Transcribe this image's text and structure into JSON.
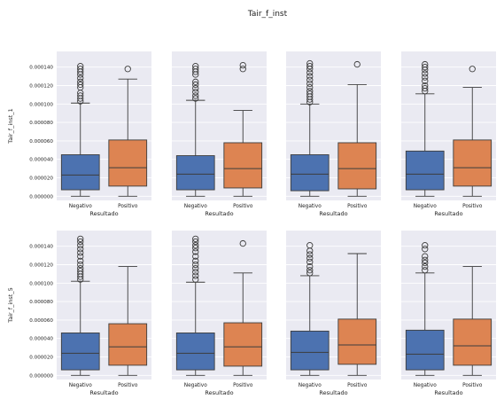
{
  "figure": {
    "title": "Tair_f_inst"
  },
  "colors": {
    "background": "#eaeaf2",
    "grid": "#ffffff",
    "negativo": "#4c72b0",
    "positivo": "#dd8452",
    "line": "#3d3d3d"
  },
  "chart_data": [
    {
      "type": "box",
      "panel": "row1-col1",
      "xlabel": "Resultado",
      "ylabel": "Tair_f_inst_1",
      "categories": [
        "Negativo",
        "Positivo"
      ],
      "yticks": [
        "0.000000",
        "0.000020",
        "0.000040",
        "0.000060",
        "0.000080",
        "0.000100",
        "0.000120",
        "0.000140"
      ],
      "ylim": [
        -4.5e-06,
        0.000157
      ],
      "boxes": [
        {
          "name": "Negativo",
          "whislo": 0.0,
          "q1": 7e-06,
          "med": 2.3e-05,
          "q3": 4.5e-05,
          "whishi": 0.000101,
          "fliers": [
            0.000103,
            0.000106,
            0.000109,
            0.000112,
            0.000118,
            0.000121,
            0.000124,
            0.000128,
            0.000132,
            0.000135,
            0.000138,
            0.000141
          ]
        },
        {
          "name": "Positivo",
          "whislo": 0.0,
          "q1": 1.1e-05,
          "med": 3.1e-05,
          "q3": 6.1e-05,
          "whishi": 0.000127,
          "fliers": [
            0.000138
          ]
        }
      ]
    },
    {
      "type": "box",
      "panel": "row1-col2",
      "xlabel": "Resultado",
      "ylabel": "",
      "categories": [
        "Negativo",
        "Positivo"
      ],
      "yticks": [],
      "ylim": [
        -4.5e-06,
        0.000157
      ],
      "boxes": [
        {
          "name": "Negativo",
          "whislo": 0.0,
          "q1": 7e-06,
          "med": 2.4e-05,
          "q3": 4.4e-05,
          "whishi": 0.000104,
          "fliers": [
            0.000106,
            0.000109,
            0.000113,
            0.000117,
            0.000121,
            0.000124,
            0.000132,
            0.000135,
            0.000138,
            0.000141
          ]
        },
        {
          "name": "Positivo",
          "whislo": 0.0,
          "q1": 9e-06,
          "med": 3e-05,
          "q3": 5.8e-05,
          "whishi": 9.3e-05,
          "fliers": [
            0.000138,
            0.000142
          ]
        }
      ]
    },
    {
      "type": "box",
      "panel": "row1-col3",
      "xlabel": "Resultado",
      "ylabel": "",
      "categories": [
        "Negativo",
        "Positivo"
      ],
      "yticks": [],
      "ylim": [
        -4.5e-06,
        0.000157
      ],
      "boxes": [
        {
          "name": "Negativo",
          "whislo": 0.0,
          "q1": 6e-06,
          "med": 2.4e-05,
          "q3": 4.5e-05,
          "whishi": 0.0001,
          "fliers": [
            0.000102,
            0.000105,
            0.000108,
            0.000111,
            0.000114,
            0.000118,
            0.000122,
            0.000126,
            0.00013,
            0.000134,
            0.000138,
            0.000141,
            0.000144
          ]
        },
        {
          "name": "Positivo",
          "whislo": 0.0,
          "q1": 8e-06,
          "med": 3e-05,
          "q3": 5.8e-05,
          "whishi": 0.000121,
          "fliers": [
            0.000143
          ]
        }
      ]
    },
    {
      "type": "box",
      "panel": "row1-col4",
      "xlabel": "Resultado",
      "ylabel": "",
      "categories": [
        "Negativo",
        "Positivo"
      ],
      "yticks": [],
      "ylim": [
        -4.5e-06,
        0.000157
      ],
      "boxes": [
        {
          "name": "Negativo",
          "whislo": 0.0,
          "q1": 7e-06,
          "med": 2.4e-05,
          "q3": 4.9e-05,
          "whishi": 0.000111,
          "fliers": [
            0.000114,
            0.000117,
            0.00012,
            0.000125,
            0.000129,
            0.000133,
            0.000137,
            0.00014,
            0.000143
          ]
        },
        {
          "name": "Positivo",
          "whislo": 0.0,
          "q1": 1.1e-05,
          "med": 3.1e-05,
          "q3": 6.1e-05,
          "whishi": 0.000118,
          "fliers": [
            0.000138
          ]
        }
      ]
    },
    {
      "type": "box",
      "panel": "row2-col1",
      "xlabel": "Resultado",
      "ylabel": "Tair_f_inst_5",
      "categories": [
        "Negativo",
        "Positivo"
      ],
      "yticks": [
        "0.000000",
        "0.000020",
        "0.000040",
        "0.000060",
        "0.000080",
        "0.000100",
        "0.000120",
        "0.000140"
      ],
      "ylim": [
        -4.5e-06,
        0.000157
      ],
      "boxes": [
        {
          "name": "Negativo",
          "whislo": 0.0,
          "q1": 6e-06,
          "med": 2.4e-05,
          "q3": 4.6e-05,
          "whishi": 0.000102,
          "fliers": [
            0.000104,
            0.000107,
            0.00011,
            0.000113,
            0.000116,
            0.00012,
            0.000124,
            0.000129,
            0.000133,
            0.000137,
            0.000141,
            0.000145,
            0.000148
          ]
        },
        {
          "name": "Positivo",
          "whislo": 0.0,
          "q1": 1.1e-05,
          "med": 3.1e-05,
          "q3": 5.6e-05,
          "whishi": 0.000118,
          "fliers": []
        }
      ]
    },
    {
      "type": "box",
      "panel": "row2-col2",
      "xlabel": "Resultado",
      "ylabel": "",
      "categories": [
        "Negativo",
        "Positivo"
      ],
      "yticks": [],
      "ylim": [
        -4.5e-06,
        0.000157
      ],
      "boxes": [
        {
          "name": "Negativo",
          "whislo": 0.0,
          "q1": 6e-06,
          "med": 2.4e-05,
          "q3": 4.6e-05,
          "whishi": 0.000101,
          "fliers": [
            0.000104,
            0.000108,
            0.000112,
            0.000116,
            0.00012,
            0.000124,
            0.000129,
            0.000134,
            0.000138,
            0.000141,
            0.000145,
            0.000148
          ]
        },
        {
          "name": "Positivo",
          "whislo": 0.0,
          "q1": 1e-05,
          "med": 3.1e-05,
          "q3": 5.7e-05,
          "whishi": 0.000111,
          "fliers": [
            0.000143
          ]
        }
      ]
    },
    {
      "type": "box",
      "panel": "row2-col3",
      "xlabel": "Resultado",
      "ylabel": "",
      "categories": [
        "Negativo",
        "Positivo"
      ],
      "yticks": [],
      "ylim": [
        -4.5e-06,
        0.000157
      ],
      "boxes": [
        {
          "name": "Negativo",
          "whislo": 0.0,
          "q1": 6e-06,
          "med": 2.5e-05,
          "q3": 4.8e-05,
          "whishi": 0.000108,
          "fliers": [
            0.000111,
            0.000114,
            0.000118,
            0.000123,
            0.000127,
            0.000131,
            0.000135,
            0.000141
          ]
        },
        {
          "name": "Positivo",
          "whislo": 0.0,
          "q1": 1.2e-05,
          "med": 3.3e-05,
          "q3": 6.1e-05,
          "whishi": 0.000132,
          "fliers": []
        }
      ]
    },
    {
      "type": "box",
      "panel": "row2-col4",
      "xlabel": "Resultado",
      "ylabel": "",
      "categories": [
        "Negativo",
        "Positivo"
      ],
      "yticks": [],
      "ylim": [
        -4.5e-06,
        0.000157
      ],
      "boxes": [
        {
          "name": "Negativo",
          "whislo": 0.0,
          "q1": 6e-06,
          "med": 2.3e-05,
          "q3": 4.9e-05,
          "whishi": 0.000111,
          "fliers": [
            0.000114,
            0.000118,
            0.000122,
            0.000125,
            0.000129,
            0.000137,
            0.000141
          ]
        },
        {
          "name": "Positivo",
          "whislo": 0.0,
          "q1": 1.1e-05,
          "med": 3.2e-05,
          "q3": 6.1e-05,
          "whishi": 0.000118,
          "fliers": []
        }
      ]
    }
  ]
}
